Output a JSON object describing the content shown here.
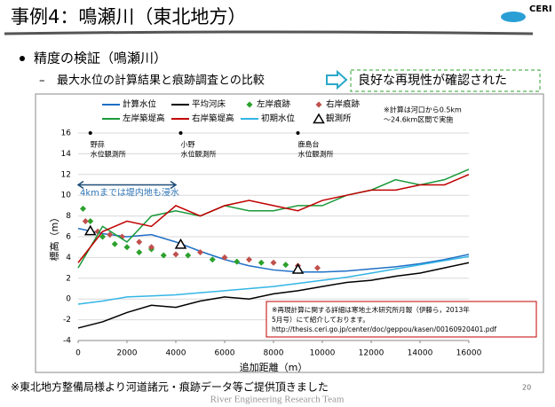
{
  "header": {
    "title": "事例4：鳴瀬川（東北地方）",
    "logo": "CERI"
  },
  "bullet": "精度の検証（鳴瀬川）",
  "subbullet": "最大水位の計算結果と痕跡調査との比較",
  "conclusion": "良好な再現性が確認された",
  "footer": {
    "note": "※東北地方整備局様より河道諸元・痕跡データ等ご提供頂きました",
    "page": "20",
    "team": "River Engineering Research Team"
  },
  "chart_data": {
    "type": "line",
    "xlabel": "追加距離（m）",
    "ylabel": "標高（m）",
    "xlim": [
      0,
      16000
    ],
    "xticks": [
      0,
      2000,
      4000,
      6000,
      8000,
      10000,
      12000,
      14000,
      16000
    ],
    "ylim": [
      -4,
      16
    ],
    "yticks": [
      -4,
      -2,
      0,
      2,
      4,
      6,
      8,
      10,
      12,
      14,
      16
    ],
    "grid": true,
    "x": [
      0,
      1000,
      2000,
      3000,
      4000,
      5000,
      6000,
      7000,
      8000,
      9000,
      10000,
      11000,
      12000,
      13000,
      14000,
      15000,
      16000
    ],
    "series": [
      {
        "name": "計算水位",
        "color": "#1f6fc5",
        "values": [
          6.8,
          6.3,
          6.0,
          6.2,
          5.5,
          4.6,
          3.8,
          3.2,
          2.8,
          2.6,
          2.6,
          2.7,
          2.9,
          3.1,
          3.4,
          3.8,
          4.3
        ]
      },
      {
        "name": "平均河床",
        "color": "#000000",
        "values": [
          -2.8,
          -2.2,
          -1.3,
          -0.6,
          -0.8,
          -0.2,
          0.2,
          0.0,
          0.5,
          0.8,
          1.2,
          1.6,
          1.8,
          2.2,
          2.5,
          3.0,
          3.5
        ]
      },
      {
        "name": "左岸痕跡",
        "color": "#2ca02c",
        "marker": "diamond",
        "x": [
          200,
          500,
          1000,
          1500,
          2000,
          2500,
          3000,
          3500,
          4500,
          5500,
          6500,
          7500,
          8500
        ],
        "values": [
          8.7,
          7.5,
          6.0,
          5.3,
          5.0,
          4.5,
          4.8,
          4.2,
          4.2,
          3.8,
          3.6,
          3.5,
          3.3
        ]
      },
      {
        "name": "右岸痕跡",
        "color": "#c0504d",
        "marker": "diamond",
        "x": [
          300,
          800,
          1300,
          1800,
          2500,
          3000,
          4000,
          5000,
          6000,
          7000,
          8000,
          9000,
          9800
        ],
        "values": [
          7.5,
          6.5,
          6.2,
          6.0,
          5.5,
          5.0,
          4.3,
          4.5,
          4.0,
          3.8,
          3.5,
          3.2,
          3.0
        ]
      },
      {
        "name": "左岸築堤高",
        "color": "#1a9a3a",
        "values": [
          3.0,
          7.0,
          5.5,
          8.0,
          8.5,
          8.0,
          9.0,
          8.5,
          8.5,
          9.0,
          9.0,
          10.0,
          10.5,
          11.5,
          11.0,
          11.5,
          12.5
        ]
      },
      {
        "name": "右岸築堤高",
        "color": "#c00000",
        "values": [
          3.5,
          6.5,
          7.5,
          7.0,
          9.0,
          8.0,
          9.0,
          9.5,
          9.0,
          8.5,
          9.5,
          10.0,
          10.5,
          10.5,
          11.0,
          11.0,
          12.0
        ]
      },
      {
        "name": "初期水位",
        "color": "#33b5e5",
        "values": [
          -0.5,
          -0.2,
          0.2,
          0.3,
          0.4,
          0.6,
          0.8,
          1.0,
          1.2,
          1.5,
          1.8,
          2.1,
          2.5,
          2.9,
          3.3,
          3.7,
          4.1
        ]
      },
      {
        "name": "観測所",
        "color": "#000000",
        "marker": "triangle",
        "x": [
          500,
          4200,
          9000
        ],
        "values": [
          6.5,
          5.2,
          2.8
        ]
      }
    ],
    "stations": [
      [
        "野蒜",
        "水位観測所"
      ],
      [
        "小野",
        "水位観測所"
      ],
      [
        "鹿島台",
        "水位観測所"
      ]
    ],
    "arrow_label": "4kmまでは堤内地も浸水",
    "calc_note": [
      "※計算は河口から0.5km",
      "〜24.6km区間で実施"
    ],
    "detail_note": [
      "※再現計算に関する詳細は寒地土木研究所月報（伊藤ら，2013年",
      "5月号）にて紹介しております。",
      "http://thesis.ceri.go.jp/center/doc/geppou/kasen/00160920401.pdf"
    ]
  }
}
